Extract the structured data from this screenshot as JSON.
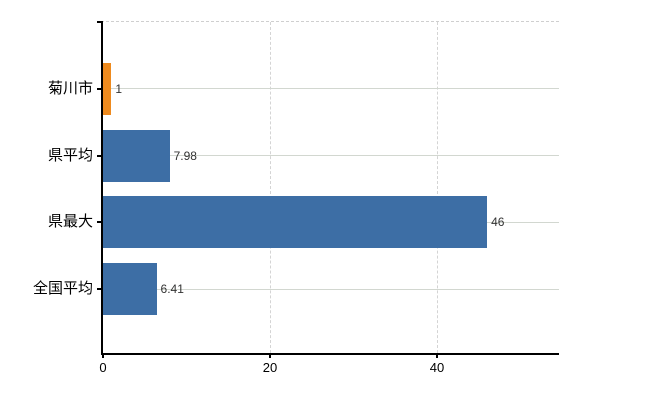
{
  "chart_data": {
    "type": "bar",
    "orientation": "horizontal",
    "title": "",
    "xlabel": "",
    "ylabel": "",
    "categories": [
      "菊川市",
      "県平均",
      "県最大",
      "全国平均"
    ],
    "values": [
      1,
      7.98,
      46,
      6.41
    ],
    "value_labels": [
      "1",
      "7.98",
      "46",
      "6.41"
    ],
    "bar_colors": [
      "#ee8a1e",
      "#3d6ea5",
      "#3d6ea5",
      "#3d6ea5"
    ],
    "xlim": [
      0,
      55
    ],
    "xticks": [
      0,
      20,
      40
    ],
    "xtick_labels": [
      "0",
      "20",
      "40"
    ],
    "grid": true,
    "legend": false
  },
  "colors": {
    "highlight_bar": "#ee8a1e",
    "default_bar": "#3d6ea5",
    "axis": "#000000",
    "gridline_vertical": "#d4d4d4",
    "guideline_horizontal": "#d2d7d0",
    "top_border": "#cfcfcf",
    "value_text": "#333333",
    "label_text": "#000000",
    "background": "#ffffff"
  }
}
